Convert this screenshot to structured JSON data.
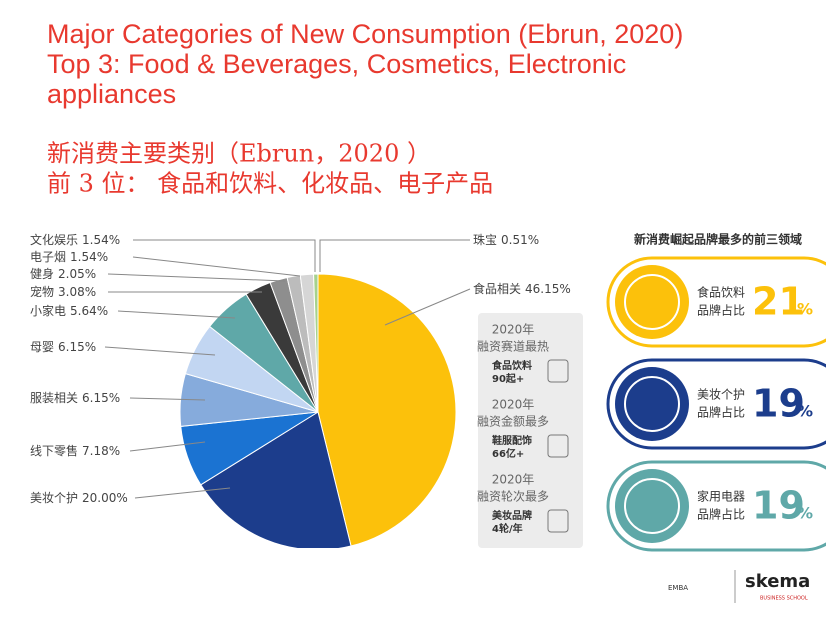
{
  "header": {
    "title_en": [
      "Major Categories of New Consumption (Ebrun, 2020)",
      "Top 3: Food & Beverages, Cosmetics, Electronic",
      "appliances"
    ],
    "title_zh": [
      "新消费主要类别（Ebrun，2020 ）",
      "前 3 位： 食品和饮料、化妆品、电子产品"
    ]
  },
  "chart_data": {
    "type": "pie",
    "categories": [
      "食品相关",
      "美妆个护",
      "线下零售",
      "服装相关",
      "母婴",
      "小家电",
      "宠物",
      "健身",
      "电子烟",
      "文化娱乐",
      "珠宝"
    ],
    "values": [
      46.15,
      20.0,
      7.18,
      6.15,
      6.15,
      5.64,
      3.08,
      2.05,
      1.54,
      1.54,
      0.51
    ],
    "value_labels": [
      "46.15%",
      "20.00%",
      "7.18%",
      "6.15%",
      "6.15%",
      "5.64%",
      "3.08%",
      "2.05%",
      "1.54%",
      "1.54%",
      "0.51%"
    ],
    "colors": [
      "#fcc10b",
      "#1c3d8c",
      "#1b73d2",
      "#86abdc",
      "#c2d6f2",
      "#5fa8a8",
      "#3a3a3a",
      "#8e8e8e",
      "#bcbcbc",
      "#d6d6d6",
      "#a7d28d"
    ]
  },
  "funding": {
    "blocks": [
      {
        "lines": [
          "2020年",
          "融资赛道最热"
        ],
        "item": [
          "食品饮料",
          "90起+"
        ]
      },
      {
        "lines": [
          "2020年",
          "融资金额最多"
        ],
        "item": [
          "鞋服配饰",
          "66亿+"
        ]
      },
      {
        "lines": [
          "2020年",
          "融资轮次最多"
        ],
        "item": [
          "美妆品牌",
          "4轮/年"
        ]
      }
    ]
  },
  "top3": {
    "title": "新消费崛起品牌最多的前三领域",
    "items": [
      {
        "name": "食品饮料",
        "sub": "品牌占比",
        "num": "21",
        "unit": "%"
      },
      {
        "name": "美妆个护",
        "sub": "品牌占比",
        "num": "19",
        "unit": "%"
      },
      {
        "name": "家用电器",
        "sub": "品牌占比",
        "num": "19",
        "unit": "%"
      }
    ]
  },
  "footer": {
    "logo1": "EMBA",
    "logo2": "skema",
    "logo2_sub": "BUSINESS SCHOOL"
  }
}
